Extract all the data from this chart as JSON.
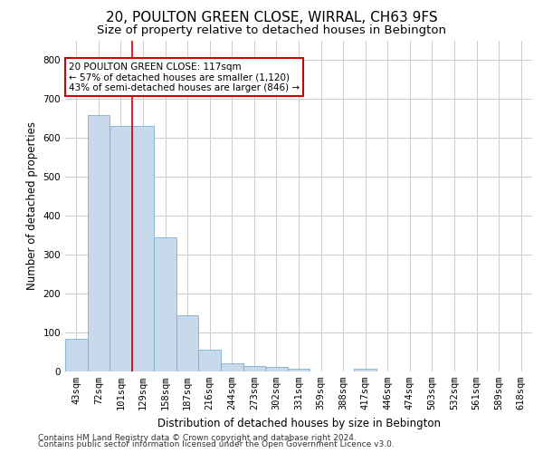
{
  "title": "20, POULTON GREEN CLOSE, WIRRAL, CH63 9FS",
  "subtitle": "Size of property relative to detached houses in Bebington",
  "xlabel": "Distribution of detached houses by size in Bebington",
  "ylabel": "Number of detached properties",
  "footnote1": "Contains HM Land Registry data © Crown copyright and database right 2024.",
  "footnote2": "Contains public sector information licensed under the Open Government Licence v3.0.",
  "categories": [
    "43sqm",
    "72sqm",
    "101sqm",
    "129sqm",
    "158sqm",
    "187sqm",
    "216sqm",
    "244sqm",
    "273sqm",
    "302sqm",
    "331sqm",
    "359sqm",
    "388sqm",
    "417sqm",
    "446sqm",
    "474sqm",
    "503sqm",
    "532sqm",
    "561sqm",
    "589sqm",
    "618sqm"
  ],
  "values": [
    85,
    660,
    630,
    630,
    345,
    145,
    55,
    20,
    15,
    12,
    8,
    0,
    0,
    8,
    0,
    0,
    0,
    0,
    0,
    0,
    0
  ],
  "bar_color": "#c9d9ec",
  "bar_edge_color": "#7bafd4",
  "bar_edge_width": 0.6,
  "grid_color": "#cccccc",
  "background_color": "#ffffff",
  "annotation_text": "20 POULTON GREEN CLOSE: 117sqm\n← 57% of detached houses are smaller (1,120)\n43% of semi-detached houses are larger (846) →",
  "annotation_box_color": "#ffffff",
  "annotation_box_edge_color": "#cc0000",
  "red_line_x": 2.5,
  "ylim": [
    0,
    850
  ],
  "yticks": [
    0,
    100,
    200,
    300,
    400,
    500,
    600,
    700,
    800
  ],
  "title_fontsize": 11,
  "subtitle_fontsize": 9.5,
  "axis_label_fontsize": 8.5,
  "tick_fontsize": 7.5,
  "annotation_fontsize": 7.5,
  "footnote_fontsize": 6.5
}
